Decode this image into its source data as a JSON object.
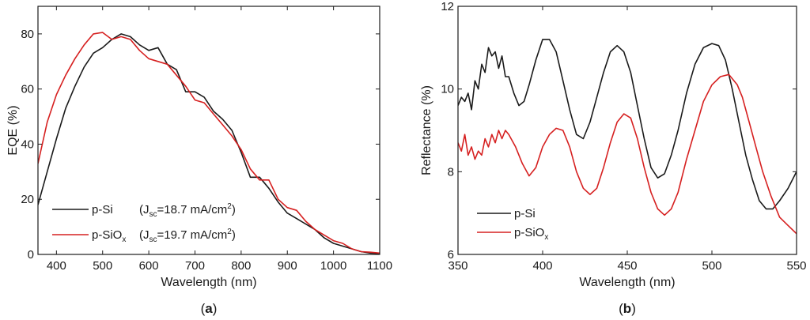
{
  "chart_data": [
    {
      "type": "line",
      "panel_label_open": "(",
      "panel_label": "a",
      "panel_label_close": ")",
      "xlabel": "Wavelength (nm)",
      "ylabel": "EQE (%)",
      "xlim": [
        360,
        1100
      ],
      "ylim": [
        0,
        90
      ],
      "xticks": [
        400,
        500,
        600,
        700,
        800,
        900,
        1000,
        1100
      ],
      "yticks": [
        0,
        20,
        40,
        60,
        80
      ],
      "legend_position": "bottom-left",
      "series": [
        {
          "name": "p-Si",
          "legend": {
            "main": "p-Si",
            "jopen": "(J",
            "jsub": "sc",
            "jval": "=18.7 mA/cm",
            "jsup": "2",
            "jclose": ")"
          },
          "color": "#1a1a1a",
          "x": [
            360,
            380,
            400,
            420,
            440,
            460,
            480,
            500,
            520,
            540,
            560,
            580,
            600,
            620,
            640,
            660,
            680,
            700,
            720,
            740,
            760,
            780,
            800,
            820,
            840,
            860,
            880,
            900,
            920,
            940,
            960,
            980,
            1000,
            1020,
            1040,
            1060,
            1080,
            1100
          ],
          "y": [
            18,
            30,
            42,
            53,
            61,
            68,
            73,
            75,
            78,
            80,
            79,
            76,
            74,
            75,
            69,
            67,
            59,
            59,
            57,
            52,
            49,
            45,
            37,
            28,
            28,
            24,
            19,
            15,
            13,
            11,
            9,
            6,
            4,
            3,
            2,
            1,
            0.5,
            0.3
          ]
        },
        {
          "name": "p-SiOx",
          "legend": {
            "main": "p-SiO",
            "msub": "x",
            "jopen": "(J",
            "jsub": "sc",
            "jval": "=19.7 mA/cm",
            "jsup": "2",
            "jclose": ")"
          },
          "color": "#d62020",
          "x": [
            360,
            380,
            400,
            420,
            440,
            460,
            480,
            500,
            520,
            540,
            560,
            580,
            600,
            620,
            640,
            660,
            680,
            700,
            720,
            740,
            760,
            780,
            800,
            820,
            840,
            860,
            880,
            900,
            920,
            940,
            960,
            980,
            1000,
            1020,
            1040,
            1060,
            1080,
            1100
          ],
          "y": [
            33,
            48,
            58,
            65,
            71,
            76,
            80,
            80.5,
            78,
            79,
            78,
            74,
            71,
            70,
            69,
            65,
            61,
            56,
            55,
            51,
            47,
            43,
            38,
            31,
            27,
            27,
            20,
            17,
            16,
            12,
            9,
            7,
            5,
            4,
            2,
            1,
            0.8,
            0.5
          ]
        }
      ]
    },
    {
      "type": "line",
      "panel_label_open": "(",
      "panel_label": "b",
      "panel_label_close": ")",
      "xlabel": "Wavelength (nm)",
      "ylabel": "Reflectance (%)",
      "xlim": [
        350,
        550
      ],
      "ylim": [
        6,
        12
      ],
      "xticks": [
        350,
        400,
        450,
        500,
        550
      ],
      "yticks": [
        6,
        8,
        10,
        12
      ],
      "legend_position": "bottom-left",
      "series": [
        {
          "name": "p-Si",
          "legend": {
            "main": "p-Si"
          },
          "color": "#1a1a1a",
          "x": [
            350,
            352,
            354,
            356,
            358,
            360,
            362,
            364,
            366,
            368,
            370,
            372,
            374,
            376,
            378,
            380,
            383,
            386,
            389,
            392,
            396,
            400,
            404,
            408,
            412,
            416,
            420,
            424,
            428,
            432,
            436,
            440,
            444,
            448,
            452,
            456,
            460,
            464,
            468,
            472,
            476,
            480,
            485,
            490,
            495,
            500,
            504,
            508,
            512,
            516,
            520,
            524,
            528,
            532,
            536,
            540,
            545,
            550
          ],
          "y": [
            9.6,
            9.8,
            9.7,
            9.9,
            9.5,
            10.2,
            10.0,
            10.6,
            10.4,
            11.0,
            10.8,
            10.9,
            10.5,
            10.8,
            10.3,
            10.3,
            9.9,
            9.6,
            9.7,
            10.1,
            10.7,
            11.2,
            11.2,
            10.9,
            10.2,
            9.5,
            8.9,
            8.8,
            9.2,
            9.8,
            10.4,
            10.9,
            11.05,
            10.9,
            10.4,
            9.6,
            8.8,
            8.1,
            7.85,
            7.95,
            8.4,
            9.0,
            9.9,
            10.6,
            11.0,
            11.1,
            11.05,
            10.7,
            10.0,
            9.2,
            8.4,
            7.8,
            7.3,
            7.1,
            7.1,
            7.3,
            7.6,
            8.0
          ]
        },
        {
          "name": "p-SiOx",
          "legend": {
            "main": "p-SiO",
            "msub": "x"
          },
          "color": "#d62020",
          "x": [
            350,
            352,
            354,
            356,
            358,
            360,
            362,
            364,
            366,
            368,
            370,
            372,
            374,
            376,
            378,
            380,
            384,
            388,
            392,
            396,
            400,
            404,
            408,
            412,
            416,
            420,
            424,
            428,
            432,
            436,
            440,
            444,
            448,
            452,
            456,
            460,
            464,
            468,
            472,
            476,
            480,
            485,
            490,
            495,
            500,
            505,
            510,
            515,
            518,
            522,
            526,
            530,
            535,
            540,
            545,
            550
          ],
          "y": [
            8.7,
            8.5,
            8.9,
            8.4,
            8.6,
            8.3,
            8.5,
            8.4,
            8.8,
            8.6,
            8.9,
            8.7,
            9.0,
            8.8,
            9.0,
            8.9,
            8.6,
            8.2,
            7.9,
            8.1,
            8.6,
            8.9,
            9.05,
            9.0,
            8.6,
            8.0,
            7.6,
            7.45,
            7.6,
            8.1,
            8.7,
            9.2,
            9.4,
            9.3,
            8.8,
            8.1,
            7.5,
            7.1,
            6.95,
            7.1,
            7.5,
            8.3,
            9.0,
            9.7,
            10.1,
            10.3,
            10.35,
            10.1,
            9.8,
            9.2,
            8.6,
            8.0,
            7.4,
            6.9,
            6.7,
            6.5
          ]
        }
      ]
    }
  ]
}
